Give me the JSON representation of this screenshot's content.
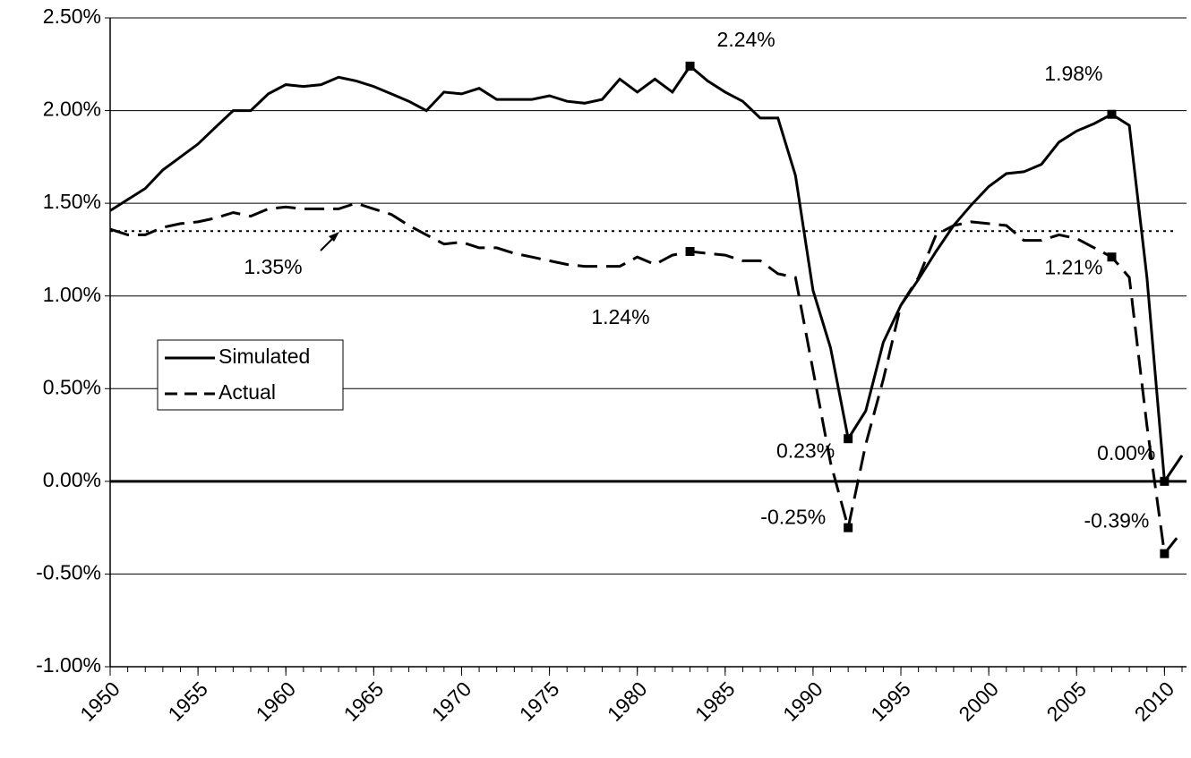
{
  "chart_data": {
    "type": "line",
    "x": [
      1950,
      1951,
      1952,
      1953,
      1954,
      1955,
      1956,
      1957,
      1958,
      1959,
      1960,
      1961,
      1962,
      1963,
      1964,
      1965,
      1966,
      1967,
      1968,
      1969,
      1970,
      1971,
      1972,
      1973,
      1974,
      1975,
      1976,
      1977,
      1978,
      1979,
      1980,
      1981,
      1982,
      1983,
      1984,
      1985,
      1986,
      1987,
      1988,
      1989,
      1990,
      1991,
      1992,
      1993,
      1994,
      1995,
      1996,
      1997,
      1998,
      1999,
      2000,
      2001,
      2002,
      2003,
      2004,
      2005,
      2006,
      2007,
      2008,
      2009,
      2010,
      2011
    ],
    "series": [
      {
        "name": "Simulated",
        "color": "#000000",
        "dash": "solid",
        "values": [
          1.46,
          1.52,
          1.58,
          1.68,
          1.75,
          1.82,
          1.91,
          2.0,
          2.0,
          2.09,
          2.14,
          2.13,
          2.14,
          2.18,
          2.16,
          2.13,
          2.09,
          2.05,
          2.0,
          2.1,
          2.09,
          2.12,
          2.06,
          2.06,
          2.06,
          2.08,
          2.05,
          2.04,
          2.06,
          2.17,
          2.1,
          2.17,
          2.1,
          2.24,
          2.16,
          2.1,
          2.05,
          1.96,
          1.96,
          1.65,
          1.03,
          0.72,
          0.23,
          0.38,
          0.75,
          0.95,
          1.09,
          1.24,
          1.38,
          1.49,
          1.59,
          1.66,
          1.67,
          1.71,
          1.83,
          1.89,
          1.93,
          1.98,
          1.92,
          1.1,
          0.0,
          0.14
        ],
        "value_labels": [
          null,
          null,
          null,
          null,
          null,
          null,
          null,
          null,
          null,
          null,
          null,
          null,
          null,
          null,
          null,
          null,
          null,
          null,
          null,
          null,
          null,
          null,
          null,
          null,
          null,
          null,
          null,
          null,
          null,
          null,
          null,
          null,
          null,
          "2.24%",
          null,
          null,
          null,
          null,
          null,
          null,
          null,
          null,
          "0.23%",
          null,
          null,
          null,
          null,
          null,
          null,
          null,
          null,
          null,
          null,
          null,
          null,
          null,
          null,
          "1.98%",
          null,
          null,
          "0.00%",
          null
        ]
      },
      {
        "name": "Actual",
        "color": "#000000",
        "dash": "dashed",
        "values": [
          1.36,
          1.33,
          1.33,
          1.37,
          1.39,
          1.4,
          1.42,
          1.45,
          1.43,
          1.47,
          1.48,
          1.47,
          1.47,
          1.47,
          1.5,
          1.47,
          1.44,
          1.38,
          1.33,
          1.28,
          1.29,
          1.26,
          1.26,
          1.23,
          1.21,
          1.19,
          1.17,
          1.16,
          1.16,
          1.16,
          1.21,
          1.17,
          1.22,
          1.24,
          1.23,
          1.22,
          1.19,
          1.19,
          1.12,
          1.1,
          0.6,
          0.1,
          -0.25,
          0.2,
          0.55,
          0.95,
          1.1,
          1.33,
          1.38,
          1.4,
          1.39,
          1.38,
          1.3,
          1.3,
          1.33,
          1.31,
          1.26,
          1.21,
          1.1,
          0.3,
          -0.39,
          -0.27
        ],
        "value_labels": [
          null,
          null,
          null,
          null,
          null,
          null,
          null,
          null,
          null,
          null,
          null,
          null,
          null,
          null,
          null,
          null,
          null,
          null,
          null,
          null,
          null,
          null,
          null,
          null,
          null,
          null,
          null,
          null,
          null,
          null,
          null,
          null,
          null,
          "1.24%",
          null,
          null,
          null,
          null,
          null,
          null,
          null,
          null,
          "-0.25%",
          null,
          null,
          null,
          null,
          null,
          null,
          null,
          null,
          null,
          null,
          null,
          null,
          null,
          null,
          "1.21%",
          null,
          null,
          "-0.39%",
          null
        ]
      }
    ],
    "reference_line": {
      "value": 1.35,
      "label": "1.35%"
    },
    "xlim": [
      1950,
      2011
    ],
    "xticks": [
      1950,
      1955,
      1960,
      1965,
      1970,
      1975,
      1980,
      1985,
      1990,
      1995,
      2000,
      2005,
      2010
    ],
    "ylim": [
      -1,
      2.5
    ],
    "yticks": [
      {
        "value": -1,
        "label": "-1.00%"
      },
      {
        "value": -0.5,
        "label": "-0.50%"
      },
      {
        "value": 0,
        "label": "0.00%"
      },
      {
        "value": 0.5,
        "label": "0.50%"
      },
      {
        "value": 1,
        "label": "1.00%"
      },
      {
        "value": 1.5,
        "label": "1.50%"
      },
      {
        "value": 2,
        "label": "2.00%"
      },
      {
        "value": 2.5,
        "label": "2.50%"
      }
    ],
    "grid": true
  }
}
